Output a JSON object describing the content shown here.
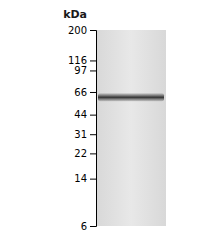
{
  "chart_data": {
    "type": "gel",
    "ylabel": "kDa",
    "log": "y",
    "ylim": [
      200,
      6
    ],
    "yticks": [
      200,
      116,
      97,
      66,
      44,
      31,
      22,
      14,
      6
    ],
    "values": [
      60
    ]
  }
}
